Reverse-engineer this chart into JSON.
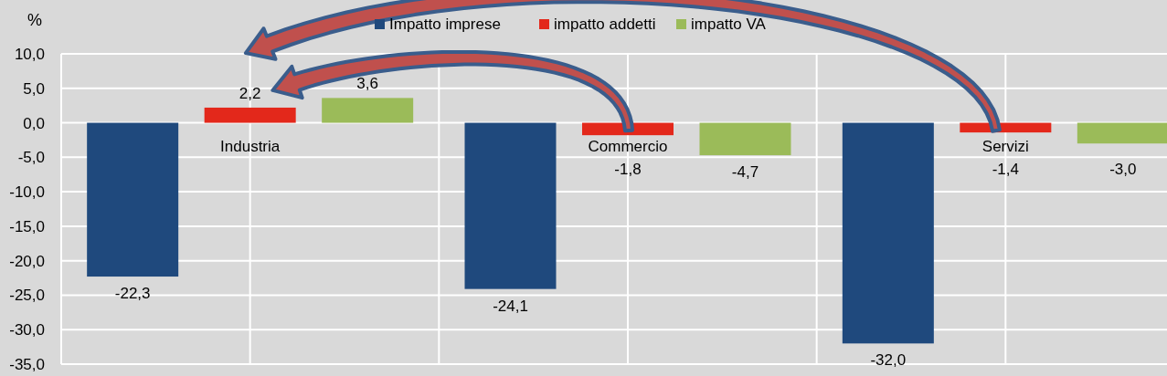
{
  "chart_data": {
    "type": "bar",
    "ylabel": "%",
    "categories": [
      "Industria",
      "Commercio",
      "Servizi"
    ],
    "series": [
      {
        "name": "Impatto imprese",
        "color": "#1f497d",
        "values": [
          -22.3,
          -24.1,
          -32.0
        ],
        "value_labels": [
          "-22,3",
          "-24,1",
          "-32,0"
        ]
      },
      {
        "name": "impatto addetti",
        "color": "#e3281b",
        "values": [
          2.2,
          -1.8,
          -1.4
        ],
        "value_labels": [
          "2,2",
          "-1,8",
          "-1,4"
        ]
      },
      {
        "name": "impatto VA",
        "color": "#9bbb59",
        "values": [
          3.6,
          -4.7,
          -3.0
        ],
        "value_labels": [
          "3,6",
          "-4,7",
          "-3,0"
        ]
      }
    ],
    "ylim": [
      -35,
      10
    ],
    "yticks": [
      {
        "value": 10,
        "label": "10,0"
      },
      {
        "value": 5,
        "label": "5,0"
      },
      {
        "value": 0,
        "label": "0,0"
      },
      {
        "value": -5,
        "label": "-5,0"
      },
      {
        "value": -10,
        "label": "-10,0"
      },
      {
        "value": -15,
        "label": "-15,0"
      },
      {
        "value": -20,
        "label": "-20,0"
      },
      {
        "value": -25,
        "label": "-25,0"
      },
      {
        "value": -30,
        "label": "-30,0"
      },
      {
        "value": -35,
        "label": "-35,0"
      }
    ],
    "grid": true,
    "legend": "top"
  }
}
